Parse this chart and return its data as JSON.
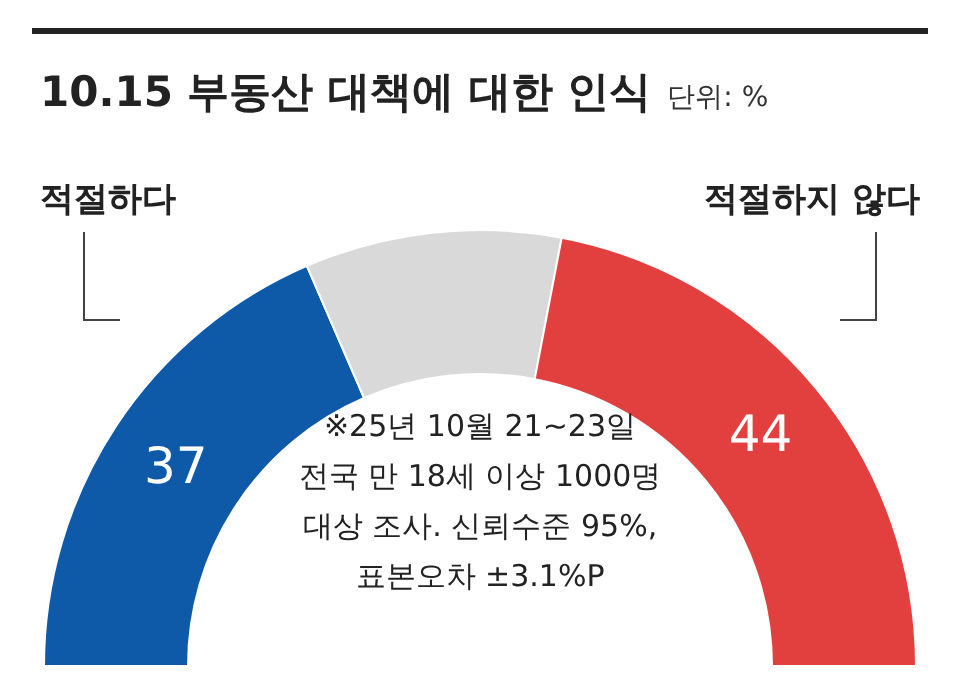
{
  "chart_data": {
    "type": "donut",
    "title": "10.15 부동산 대책에 대한 인식",
    "subtitle": "단위: %",
    "categories": [
      "적절하다",
      null,
      "적절하지 않다"
    ],
    "values": [
      37,
      19,
      44
    ],
    "colors": [
      "#0f5aa8",
      "#d9d9d9",
      "#e2403f"
    ],
    "value_labels": [
      "37",
      null,
      "44"
    ],
    "annotations": [
      "※25년 10월 21~23일\n전국 만 18세 이상 1000명\n대상 조사. 신뢰수준 95%,\n표본오차 ±3.1%P"
    ]
  }
}
